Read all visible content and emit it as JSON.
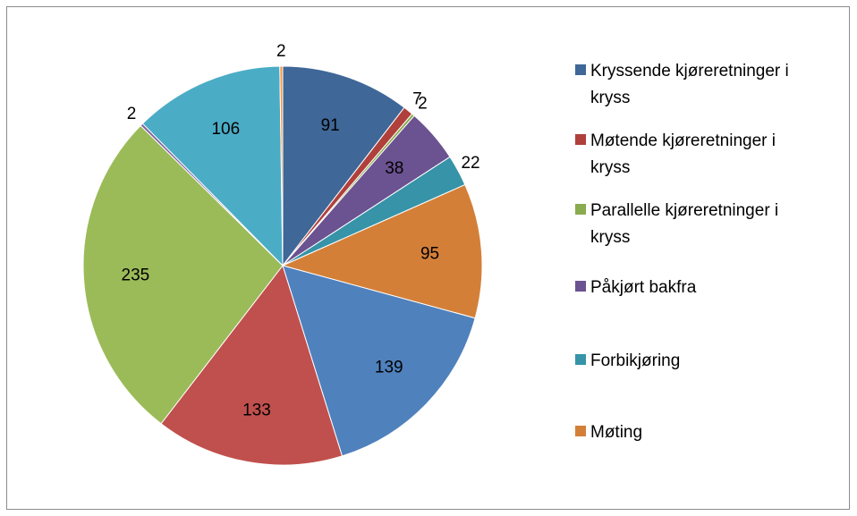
{
  "chart_data": {
    "type": "pie",
    "categories": [
      "Kryssende kjøreretninger i kryss",
      "Møtende kjøreretninger i kryss",
      "Parallelle kjøreretninger i kryss",
      "Påkjørt bakfra",
      "Forbikjøring",
      "Møting",
      null,
      null,
      null,
      null,
      null,
      null
    ],
    "values": [
      91,
      7,
      2,
      38,
      22,
      95,
      139,
      133,
      235,
      2,
      106,
      2
    ],
    "colors": [
      "#3f6797",
      "#b0403c",
      "#8aab4e",
      "#6b5290",
      "#3693a8",
      "#d47f38",
      "#4f81bd",
      "#c0504d",
      "#9bbb59",
      "#8064a2",
      "#4bacc6",
      "#f79646"
    ],
    "legend": "right"
  }
}
